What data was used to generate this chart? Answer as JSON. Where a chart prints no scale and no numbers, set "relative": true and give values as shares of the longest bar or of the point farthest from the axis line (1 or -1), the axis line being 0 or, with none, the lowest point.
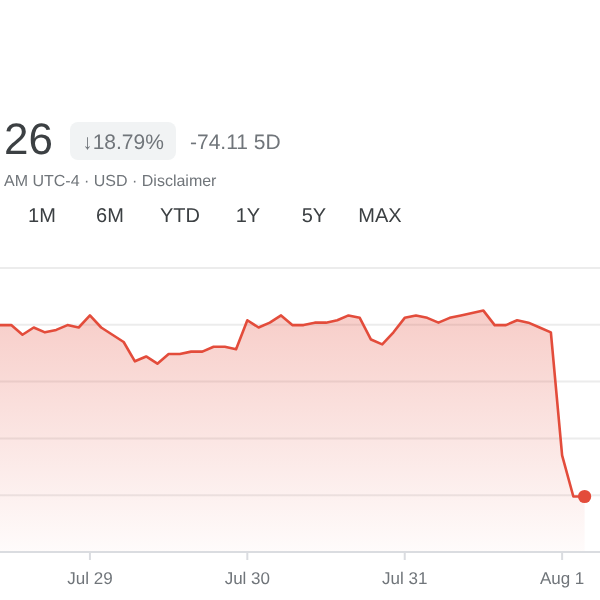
{
  "chart_data": {
    "type": "line",
    "relative": true,
    "grid": "y",
    "color": "#e34c3b",
    "annotations": [
      "26",
      "↓18.79%",
      "-74.11 5D",
      "AM UTC-4 · USD · Disclaimer",
      "1M",
      "6M",
      "YTD",
      "1Y",
      "5Y",
      "MAX"
    ],
    "categories": [
      null,
      null,
      null,
      null,
      null,
      null,
      null,
      null,
      "Jul 29",
      null,
      null,
      null,
      null,
      null,
      null,
      null,
      null,
      null,
      null,
      null,
      null,
      null,
      "Jul 30",
      null,
      null,
      null,
      null,
      null,
      null,
      null,
      null,
      null,
      null,
      null,
      null,
      null,
      "Jul 31",
      null,
      null,
      null,
      null,
      null,
      null,
      null,
      null,
      null,
      null,
      null,
      null,
      null,
      "Aug 1",
      null,
      null
    ],
    "values": [
      0.94,
      0.94,
      0.9,
      0.93,
      0.91,
      0.92,
      0.94,
      0.93,
      0.98,
      0.93,
      0.9,
      0.87,
      0.79,
      0.81,
      0.78,
      0.82,
      0.82,
      0.83,
      0.83,
      0.85,
      0.85,
      0.84,
      0.96,
      0.93,
      0.95,
      0.98,
      0.94,
      0.94,
      0.95,
      0.95,
      0.96,
      0.98,
      0.97,
      0.88,
      0.86,
      0.91,
      0.97,
      0.98,
      0.97,
      0.95,
      0.97,
      0.98,
      0.99,
      1,
      0.94,
      0.94,
      0.96,
      0.95,
      0.93,
      0.91,
      0.4,
      0.23,
      0.23
    ],
    "line_style": "solid"
  }
}
